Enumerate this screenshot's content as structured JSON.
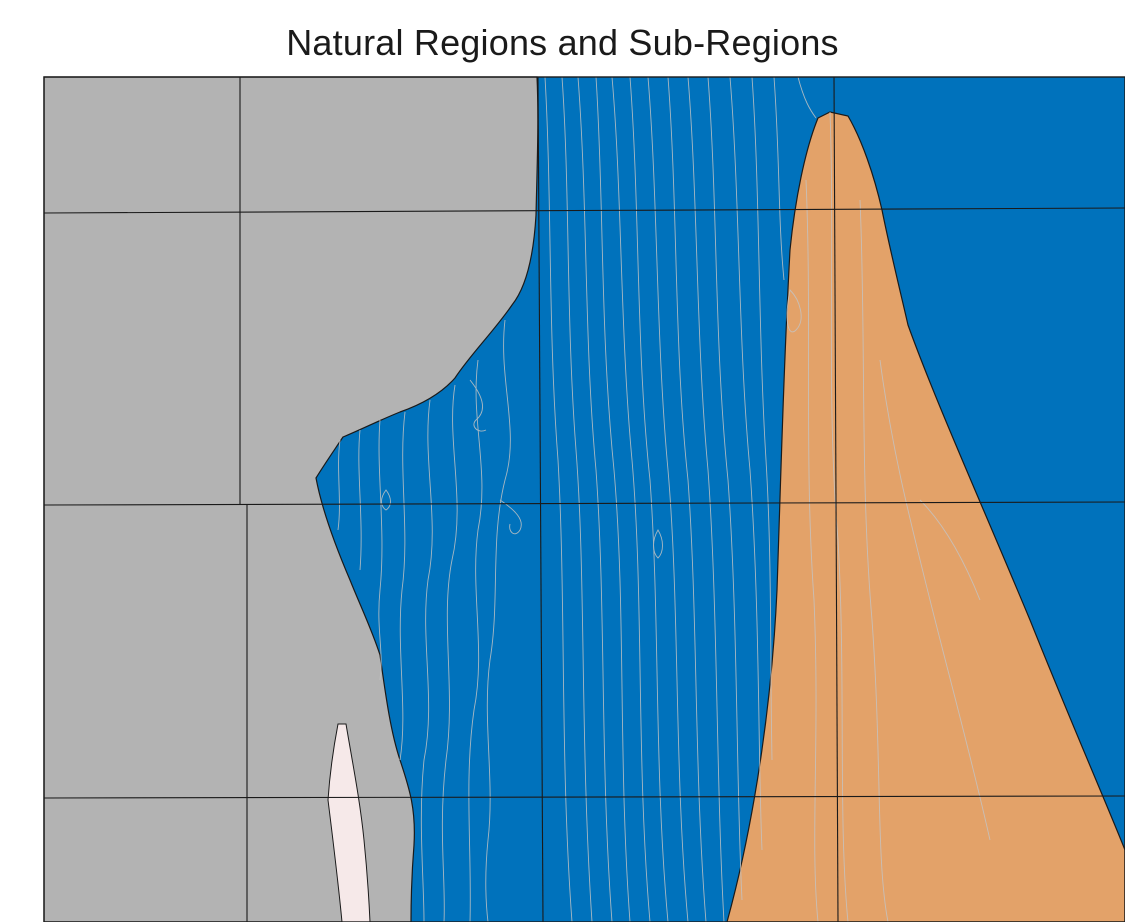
{
  "map": {
    "title": "Natural Regions and Sub-Regions"
  },
  "colors": {
    "background": "#ffffff",
    "region_gray": "#b3b3b3",
    "region_blue": "#0072bc",
    "region_orange": "#e3a269",
    "region_pink": "#f6e9e9",
    "boundary_line": "#1a1a1a",
    "subregion_line": "#c4c4c4"
  },
  "regions": [
    {
      "id": "gray",
      "color_key": "region_gray"
    },
    {
      "id": "blue",
      "color_key": "region_blue"
    },
    {
      "id": "orange",
      "color_key": "region_orange"
    },
    {
      "id": "pink",
      "color_key": "region_pink"
    }
  ]
}
